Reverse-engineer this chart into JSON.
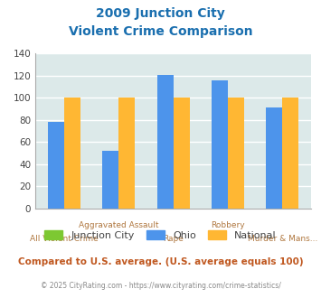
{
  "title_line1": "2009 Junction City",
  "title_line2": "Violent Crime Comparison",
  "categories": [
    "All Violent Crime",
    "Aggravated Assault",
    "Rape",
    "Robbery",
    "Murder & Mans..."
  ],
  "ohio": [
    78,
    52,
    121,
    116,
    91
  ],
  "national": [
    100,
    100,
    100,
    100,
    100
  ],
  "color_junction": "#7dc832",
  "color_ohio": "#4d94eb",
  "color_national": "#ffb733",
  "ylim": [
    0,
    140
  ],
  "yticks": [
    0,
    20,
    40,
    60,
    80,
    100,
    120,
    140
  ],
  "background_color": "#dce9e9",
  "grid_color": "#ffffff",
  "title_color": "#1a6faf",
  "xlabel_color": "#b07840",
  "legend_labels": [
    "Junction City",
    "Ohio",
    "National"
  ],
  "footer_text": "Compared to U.S. average. (U.S. average equals 100)",
  "copyright_text": "© 2025 CityRating.com - https://www.cityrating.com/crime-statistics/",
  "footer_color": "#c05820",
  "copyright_color": "#888888",
  "bar_width": 0.3
}
